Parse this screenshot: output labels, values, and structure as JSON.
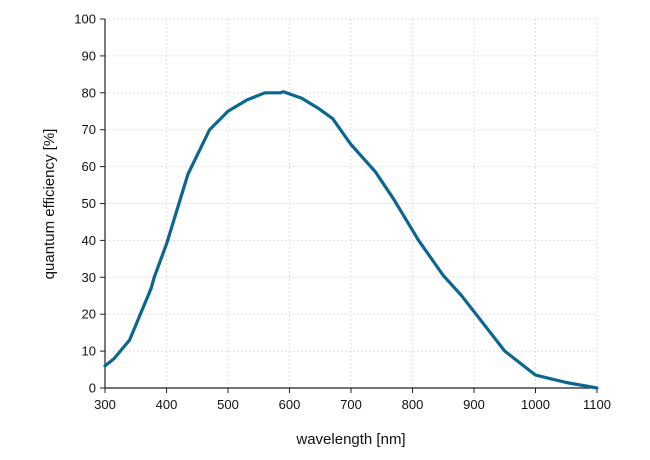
{
  "chart_data": {
    "type": "line",
    "title": "",
    "xlabel": "wavelength [nm]",
    "ylabel": "quantum efficiency [%]",
    "xlim": [
      300,
      1100
    ],
    "ylim": [
      0,
      100
    ],
    "xticks": [
      300,
      400,
      500,
      600,
      700,
      800,
      900,
      1000,
      1100
    ],
    "yticks": [
      0,
      10,
      20,
      30,
      40,
      50,
      60,
      70,
      80,
      90,
      100
    ],
    "grid": true,
    "line_color": "#0b6690",
    "series": [
      {
        "name": "quantum efficiency",
        "x": [
          300,
          315,
          340,
          375,
          380,
          400,
          435,
          470,
          500,
          530,
          560,
          585,
          590,
          620,
          635,
          645,
          670,
          700,
          740,
          770,
          810,
          850,
          880,
          950,
          1000,
          1050,
          1100
        ],
        "y": [
          6,
          8,
          13,
          27,
          30,
          39,
          58,
          70,
          75,
          78,
          80,
          80,
          80.3,
          78.5,
          77,
          76,
          73,
          66,
          58.5,
          51,
          40,
          30.5,
          25,
          10,
          3.5,
          1.5,
          0
        ]
      }
    ]
  }
}
